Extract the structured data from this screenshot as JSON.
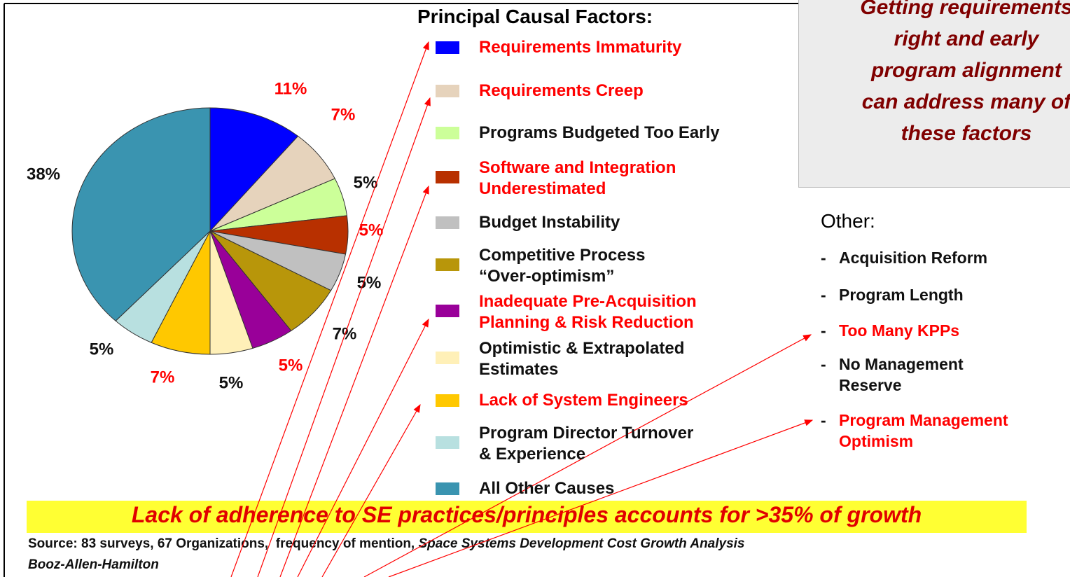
{
  "chart_data": {
    "type": "pie",
    "title": "Principal Causal Factors:",
    "categories": [
      "Requirements Immaturity",
      "Requirements Creep",
      "Programs Budgeted Too Early",
      "Software and Integration\nUnderestimated",
      "Budget Instability",
      "Competitive Process\n“Over-optimism”",
      "Inadequate Pre-Acquisition\nPlanning & Risk Reduction",
      "Optimistic & Extrapolated\nEstimates",
      "Lack of System Engineers",
      "Program Director Turnover\n& Experience",
      "All Other Causes"
    ],
    "values": [
      11,
      7,
      5,
      5,
      5,
      7,
      5,
      5,
      7,
      5,
      38
    ],
    "value_labels": [
      "11%",
      "7%",
      "5%",
      "5%",
      "5%",
      "7%",
      "5%",
      "5%",
      "7%",
      "5%",
      "38%"
    ],
    "colors": [
      "#0000ff",
      "#e6d3bc",
      "#ccff99",
      "#b83000",
      "#c0c0c0",
      "#b8960a",
      "#990099",
      "#fff0b8",
      "#ffc800",
      "#b8e0e0",
      "#3a94b0"
    ],
    "legend_text_colors": [
      "#ff0000",
      "#ff0000",
      "#111111",
      "#ff0000",
      "#111111",
      "#111111",
      "#ff0000",
      "#111111",
      "#ff0000",
      "#111111",
      "#111111"
    ],
    "value_label_colors": [
      "#ff0000",
      "#ff0000",
      "#111111",
      "#ff0000",
      "#111111",
      "#111111",
      "#ff0000",
      "#111111",
      "#ff0000",
      "#111111",
      "#111111"
    ]
  },
  "callout": "Getting requirements\nright and early\nprogram alignment\ncan address many of\nthese factors",
  "other": {
    "title": "Other:",
    "bullet": "-",
    "items": [
      "Acquisition Reform",
      "Program Length",
      "Too Many KPPs",
      "No Management\nReserve",
      "Program Management\nOptimism"
    ],
    "item_colors": [
      "#111111",
      "#111111",
      "#ff0000",
      "#111111",
      "#ff0000"
    ]
  },
  "banner": "Lack of adherence to SE practices/principles accounts for >35% of growth",
  "source": {
    "text": "Source: 83 surveys, 67 Organizations,  frequency of mention, ",
    "study": "Space Systems Development Cost Growth Analysis",
    "author": "Booz-Allen-Hamilton"
  }
}
